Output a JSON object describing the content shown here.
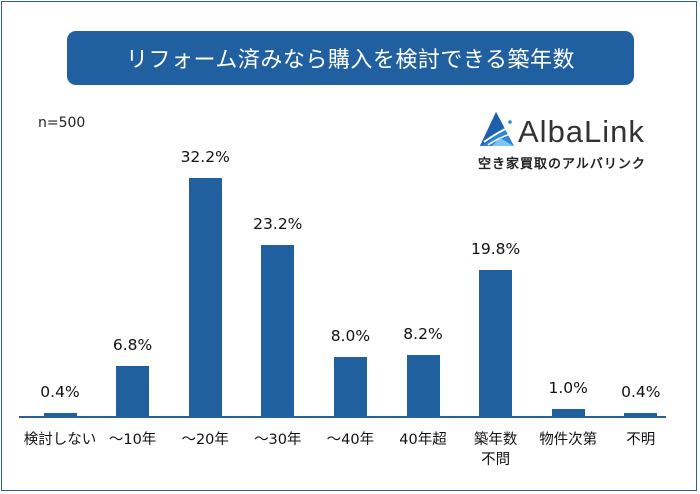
{
  "title": "リフォーム済みなら購入を検討できる築年数",
  "sample": "n=500",
  "logo": {
    "name": "AlbaLink",
    "tagline": "空き家買取のアルバリンク",
    "icon": "triangle-mountain-logo-icon"
  },
  "colors": {
    "bar": "#21609f",
    "title_bg": "#2160a0",
    "frame": "#2c5f96"
  },
  "chart_data": {
    "type": "bar",
    "title": "リフォーム済みなら購入を検討できる築年数",
    "subtitle": "n=500",
    "xlabel": "",
    "ylabel": "",
    "categories": [
      "検討しない",
      "～10年",
      "～20年",
      "～30年",
      "～40年",
      "40年超",
      "築年数不問",
      "物件次第",
      "不明"
    ],
    "category_lines": [
      [
        "検討しない"
      ],
      [
        "～10年"
      ],
      [
        "～20年"
      ],
      [
        "～30年"
      ],
      [
        "～40年"
      ],
      [
        "40年超"
      ],
      [
        "築年数",
        "不問"
      ],
      [
        "物件次第"
      ],
      [
        "不明"
      ]
    ],
    "values": [
      0.4,
      6.8,
      32.2,
      23.2,
      8.0,
      8.2,
      19.8,
      1.0,
      0.4
    ],
    "value_labels": [
      "0.4%",
      "6.8%",
      "32.2%",
      "23.2%",
      "8.0%",
      "8.2%",
      "19.8%",
      "1.0%",
      "0.4%"
    ],
    "unit": "%",
    "ylim": [
      0,
      35
    ],
    "grid": false,
    "legend": "none"
  }
}
